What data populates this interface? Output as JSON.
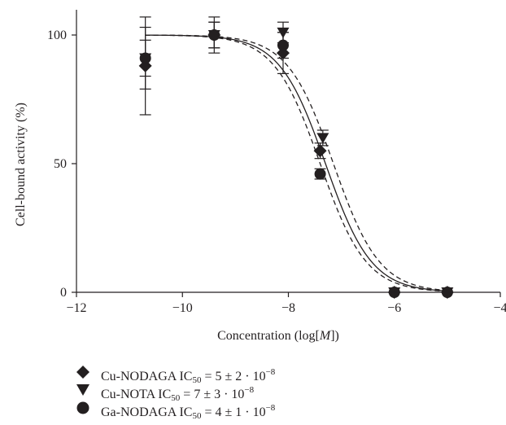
{
  "colors": {
    "ink": "#231f20"
  },
  "chart_data": {
    "type": "scatter",
    "xlabel_prefix": "Concentration (log[",
    "xlabel_var": "M",
    "xlabel_suffix": "])",
    "ylabel": "Cell-bound activity (%)",
    "xlim": [
      -12,
      -4
    ],
    "ylim": [
      0,
      100
    ],
    "x_ticks": [
      -12,
      -10,
      -8,
      -6,
      -4
    ],
    "x_tick_labels": [
      "−12",
      "−10",
      "−8",
      "−6",
      "−4"
    ],
    "y_ticks": [
      0,
      50,
      100
    ],
    "y_tick_labels": [
      "0",
      "50",
      "100"
    ],
    "grid": false,
    "legend_position": "bottom",
    "series": [
      {
        "name": "Cu-NODAGA",
        "marker": "diamond",
        "ic50_label": "5 ± 2 · 10",
        "ic50_exp": "−8",
        "curve_style": "solid",
        "log_ic50": -7.3,
        "points": [
          {
            "x": -10.7,
            "y": 88,
            "err": 19
          },
          {
            "x": -9.4,
            "y": 100,
            "err": 5
          },
          {
            "x": -8.1,
            "y": 93,
            "err": 8
          },
          {
            "x": -7.4,
            "y": 55,
            "err": 3
          },
          {
            "x": -6.0,
            "y": 0,
            "err": 0
          },
          {
            "x": -5.0,
            "y": 0,
            "err": 0
          }
        ]
      },
      {
        "name": "Cu-NOTA",
        "marker": "triangle-down",
        "ic50_label": "7 ± 3 · 10",
        "ic50_exp": "−8",
        "curve_style": "dashed",
        "log_ic50": -7.15,
        "points": [
          {
            "x": -10.7,
            "y": 91,
            "err": 12
          },
          {
            "x": -9.4,
            "y": 100,
            "err": 7
          },
          {
            "x": -8.1,
            "y": 101,
            "err": 4
          },
          {
            "x": -7.35,
            "y": 60,
            "err": 3
          },
          {
            "x": -6.0,
            "y": 0,
            "err": 0
          },
          {
            "x": -5.0,
            "y": 0,
            "err": 0
          }
        ]
      },
      {
        "name": "Ga-NODAGA",
        "marker": "circle",
        "ic50_label": "4 ± 1 · 10",
        "ic50_exp": "−8",
        "curve_style": "dashed",
        "log_ic50": -7.4,
        "points": [
          {
            "x": -10.7,
            "y": 91,
            "err": 7
          },
          {
            "x": -9.4,
            "y": 100,
            "err": 5
          },
          {
            "x": -8.1,
            "y": 96,
            "err": 5
          },
          {
            "x": -7.4,
            "y": 46,
            "err": 2
          },
          {
            "x": -6.0,
            "y": 0,
            "err": 0
          },
          {
            "x": -5.0,
            "y": 0,
            "err": 0
          }
        ]
      }
    ]
  }
}
